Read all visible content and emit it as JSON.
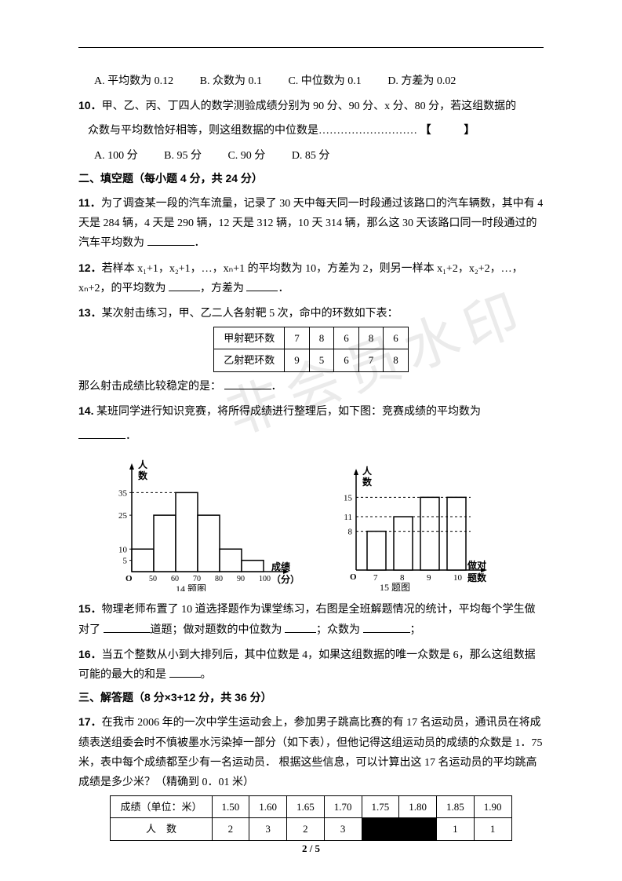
{
  "q9": {
    "optA": "A. 平均数为 0.12",
    "optB": "B. 众数为 0.1",
    "optC": "C. 中位数为 0.1",
    "optD": "D.  方差为 0.02"
  },
  "q10": {
    "num": "10．",
    "text1": "甲、乙、丙、丁四人的数学测验成绩分别为 90 分、90 分、x 分、80 分，若这组数据的",
    "text2": "众数与平均数恰好相等，则这组数据的中位数是………………………",
    "bracket": "【　　　】",
    "optA": "A. 100 分",
    "optB": "B. 95 分",
    "optC": "C. 90 分",
    "optD": "D. 85 分"
  },
  "sec2": "二、填空题（每小题 4 分，共 24 分）",
  "q11": {
    "num": "11．",
    "text1": "为了调查某一段的汽车流量，记录了 30 天中每天同一时段通过该路口的汽车辆数，其中有 4 天是 284 辆，4 天是 290 辆，12 天是 312 辆，10 天 314 辆，那么这 30 天该路口同一时段通过的汽车平均数为",
    "tail": "．"
  },
  "q12": {
    "num": "12．",
    "text1": "若样本 x₁+1，x₂+1，…，xₙ+1 的平均数为 10，方差为 2，则另一样本 x₁+2，x₂+2，…，xₙ+2，的平均数为",
    "text2": "，方差为",
    "tail": "．"
  },
  "q13": {
    "num": "13．",
    "text1": "某次射击练习，甲、乙二人各射靶 5 次，命中的环数如下表：",
    "table": {
      "r1": [
        "甲射靶环数",
        "7",
        "8",
        "6",
        "8",
        "6"
      ],
      "r2": [
        "乙射靶环数",
        "9",
        "5",
        "6",
        "7",
        "8"
      ]
    },
    "text2": "那么射击成绩比较稳定的是：",
    "tail": "．"
  },
  "q14": {
    "num": "14.",
    "text": "某班同学进行知识竞赛，将所得成绩进行整理后，如下图：竞赛成绩的平均数为",
    "tail": "．"
  },
  "chart14": {
    "ylabel": "人数",
    "xlabel1": "成绩",
    "xlabel2": "（分）",
    "caption": "14 题图",
    "yticks": [
      "5",
      "10",
      "25",
      "35"
    ],
    "xticks": [
      "O",
      "50",
      "60",
      "70",
      "80",
      "90",
      "100"
    ],
    "bars": [
      10,
      25,
      35,
      25,
      10,
      5
    ],
    "bar_color": "#ffffff",
    "border_color": "#000000",
    "ymax": 40
  },
  "chart15": {
    "ylabel": "人数",
    "xlabel1": "做对",
    "xlabel2": "题数",
    "caption": "15 题图",
    "yticks": [
      "8",
      "11",
      "15"
    ],
    "xticks": [
      "O",
      "7",
      "8",
      "9",
      "10"
    ],
    "bars": [
      8,
      11,
      15,
      15
    ],
    "bar_color": "#ffffff",
    "border_color": "#000000",
    "ymax": 17
  },
  "q15": {
    "num": "15．",
    "text1": "物理老师布置了 10 道选择题作为课堂练习，右图是全班解题情况的统计，平均每个学生做对了",
    "text2": "道题；做对题数的中位数为",
    "text3": "；众数为",
    "tail": "；"
  },
  "q16": {
    "num": "16．",
    "text1": "当五个整数从小到大排列后，其中位数是 4，如果这组数据的唯一众数是 6，那么这组数据可能的最大的和是",
    "tail": "。"
  },
  "sec3": "三、解答题（8 分×3+12 分，共 36 分）",
  "q17": {
    "num": "17．",
    "text": "在我市 2006 年的一次中学生运动会上，参加男子跳高比赛的有 17 名运动员，通讯员在将成绩表送组委会时不慎被墨水污染掉一部分（如下表），但他记得这组运动员的成绩的众数是 1．75 米，表中每个成绩都至少有一名运动员． 根据这些信息，可以计算出这 17 名运动员的平均跳高成绩是多少米？（精确到 0．01 米）",
    "table": {
      "head": [
        "成绩（单位：米）",
        "1.50",
        "1.60",
        "1.65",
        "1.70",
        "1.75",
        "1.80",
        "1.85",
        "1.90"
      ],
      "row": [
        "人　数",
        "2",
        "3",
        "2",
        "3",
        "█",
        "█",
        "1",
        "1"
      ]
    }
  },
  "footer": "2 / 5",
  "watermark": "非会员水印"
}
